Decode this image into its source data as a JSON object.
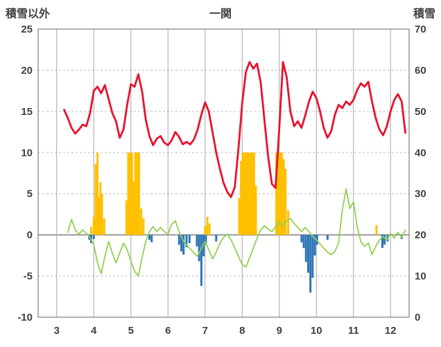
{
  "chart_data": {
    "type": "combo",
    "title": "一関",
    "left_axis": {
      "title": "積雪以外",
      "min": -10,
      "max": 25,
      "ticks": [
        25,
        20,
        15,
        10,
        5,
        0,
        -5,
        -10
      ]
    },
    "right_axis": {
      "title": "積雪",
      "min": 0,
      "max": 70,
      "ticks": [
        70,
        60,
        50,
        40,
        30,
        20,
        10,
        0
      ]
    },
    "x_axis": {
      "min": 2.5,
      "max": 12.5,
      "ticks": [
        3,
        4,
        5,
        6,
        7,
        8,
        9,
        10,
        11,
        12
      ]
    },
    "grid": {
      "vertical": "solid",
      "horizontal": "dashed",
      "zero_line": "solid"
    },
    "colors": {
      "red_line": "#e8112d",
      "green_line": "#92d050",
      "orange_bar": "#ffc000",
      "blue_bar": "#2e75b6",
      "grid": "#a6a6a6",
      "frame": "#7f7f7f",
      "text": "#404040"
    },
    "series": [
      {
        "name": "orange-bars",
        "type": "bar",
        "axis": "left",
        "color": "#ffc000",
        "points": [
          [
            3.93,
            1.0
          ],
          [
            4.0,
            2.2
          ],
          [
            4.05,
            8.6
          ],
          [
            4.1,
            10
          ],
          [
            4.14,
            4.6
          ],
          [
            4.18,
            6.4
          ],
          [
            4.22,
            5.0
          ],
          [
            4.28,
            2.0
          ],
          [
            4.88,
            4.2
          ],
          [
            4.93,
            10
          ],
          [
            4.98,
            10
          ],
          [
            5.03,
            10
          ],
          [
            5.08,
            6.5
          ],
          [
            5.12,
            10
          ],
          [
            5.17,
            10
          ],
          [
            5.22,
            10
          ],
          [
            5.28,
            3.2
          ],
          [
            5.34,
            2.0
          ],
          [
            7.0,
            1.1
          ],
          [
            7.06,
            2.2
          ],
          [
            7.12,
            1.4
          ],
          [
            7.92,
            4.5
          ],
          [
            7.97,
            9.0
          ],
          [
            8.02,
            10
          ],
          [
            8.07,
            10
          ],
          [
            8.12,
            10
          ],
          [
            8.17,
            10
          ],
          [
            8.22,
            10
          ],
          [
            8.27,
            10
          ],
          [
            8.32,
            10
          ],
          [
            8.37,
            6.0
          ],
          [
            8.92,
            10
          ],
          [
            8.97,
            10
          ],
          [
            9.02,
            10
          ],
          [
            9.07,
            10
          ],
          [
            9.12,
            9.2
          ],
          [
            9.17,
            8.0
          ],
          [
            9.24,
            3.0
          ],
          [
            11.62,
            1.2
          ]
        ]
      },
      {
        "name": "blue-bars",
        "type": "bar",
        "axis": "left",
        "color": "#2e75b6",
        "points": [
          [
            3.88,
            -0.6
          ],
          [
            3.93,
            -1.0
          ],
          [
            4.0,
            -0.5
          ],
          [
            5.5,
            -0.6
          ],
          [
            5.56,
            -0.9
          ],
          [
            6.3,
            -1.2
          ],
          [
            6.36,
            -2.0
          ],
          [
            6.42,
            -2.4
          ],
          [
            6.5,
            -1.5
          ],
          [
            6.58,
            -1.0
          ],
          [
            6.78,
            -1.4
          ],
          [
            6.84,
            -3.2
          ],
          [
            6.9,
            -6.2
          ],
          [
            6.96,
            -2.6
          ],
          [
            7.02,
            -1.2
          ],
          [
            7.3,
            -0.8
          ],
          [
            9.6,
            -0.9
          ],
          [
            9.66,
            -1.6
          ],
          [
            9.72,
            -3.3
          ],
          [
            9.78,
            -4.6
          ],
          [
            9.84,
            -7.0
          ],
          [
            9.9,
            -5.2
          ],
          [
            9.96,
            -2.5
          ],
          [
            10.02,
            -1.2
          ],
          [
            10.3,
            -0.6
          ],
          [
            11.78,
            -1.6
          ],
          [
            11.84,
            -1.2
          ],
          [
            11.92,
            -0.8
          ],
          [
            12.3,
            -0.5
          ]
        ]
      },
      {
        "name": "green-line",
        "type": "line",
        "axis": "left",
        "color": "#92d050",
        "width": 1.8,
        "points": [
          [
            3.3,
            0.3
          ],
          [
            3.4,
            1.9
          ],
          [
            3.5,
            0.6
          ],
          [
            3.6,
            0.1
          ],
          [
            3.7,
            0.6
          ],
          [
            3.8,
            0.2
          ],
          [
            3.9,
            -0.3
          ],
          [
            4.0,
            -1.2
          ],
          [
            4.1,
            -3.4
          ],
          [
            4.2,
            -4.7
          ],
          [
            4.3,
            -2.6
          ],
          [
            4.4,
            -0.8
          ],
          [
            4.5,
            -2.2
          ],
          [
            4.6,
            -3.4
          ],
          [
            4.7,
            -2.2
          ],
          [
            4.8,
            -1.0
          ],
          [
            4.9,
            -1.8
          ],
          [
            5.0,
            -3.2
          ],
          [
            5.1,
            -4.4
          ],
          [
            5.2,
            -5.0
          ],
          [
            5.3,
            -2.8
          ],
          [
            5.4,
            -0.8
          ],
          [
            5.5,
            0.4
          ],
          [
            5.6,
            1.0
          ],
          [
            5.7,
            0.4
          ],
          [
            5.8,
            0.9
          ],
          [
            5.9,
            0.4
          ],
          [
            6.0,
            0.1
          ],
          [
            6.1,
            1.3
          ],
          [
            6.2,
            1.7
          ],
          [
            6.3,
            0.4
          ],
          [
            6.4,
            -0.6
          ],
          [
            6.5,
            -1.2
          ],
          [
            6.6,
            -1.7
          ],
          [
            6.7,
            -2.2
          ],
          [
            6.8,
            -2.6
          ],
          [
            6.9,
            -1.6
          ],
          [
            7.0,
            -0.8
          ],
          [
            7.1,
            -1.8
          ],
          [
            7.2,
            -2.9
          ],
          [
            7.3,
            -2.1
          ],
          [
            7.4,
            -1.0
          ],
          [
            7.5,
            -0.3
          ],
          [
            7.6,
            0.1
          ],
          [
            7.7,
            -0.6
          ],
          [
            7.8,
            -1.6
          ],
          [
            7.9,
            -2.6
          ],
          [
            8.0,
            -3.6
          ],
          [
            8.1,
            -3.9
          ],
          [
            8.2,
            -2.8
          ],
          [
            8.3,
            -1.6
          ],
          [
            8.4,
            -0.4
          ],
          [
            8.5,
            0.6
          ],
          [
            8.6,
            1.1
          ],
          [
            8.7,
            0.7
          ],
          [
            8.8,
            0.4
          ],
          [
            8.9,
            1.0
          ],
          [
            9.0,
            1.6
          ],
          [
            9.1,
            1.1
          ],
          [
            9.2,
            1.7
          ],
          [
            9.3,
            2.0
          ],
          [
            9.4,
            1.4
          ],
          [
            9.5,
            0.9
          ],
          [
            9.6,
            0.4
          ],
          [
            9.7,
            0.9
          ],
          [
            9.8,
            0.4
          ],
          [
            9.9,
            -0.2
          ],
          [
            10.0,
            -0.6
          ],
          [
            10.1,
            -1.1
          ],
          [
            10.2,
            -1.6
          ],
          [
            10.3,
            -2.1
          ],
          [
            10.4,
            -2.4
          ],
          [
            10.5,
            -2.0
          ],
          [
            10.6,
            -1.0
          ],
          [
            10.7,
            3.0
          ],
          [
            10.8,
            5.6
          ],
          [
            10.9,
            3.2
          ],
          [
            11.0,
            4.0
          ],
          [
            11.1,
            1.0
          ],
          [
            11.2,
            -0.8
          ],
          [
            11.3,
            -1.4
          ],
          [
            11.4,
            -1.0
          ],
          [
            11.5,
            -2.4
          ],
          [
            11.6,
            -1.4
          ],
          [
            11.7,
            -0.6
          ],
          [
            11.8,
            -0.2
          ],
          [
            11.9,
            -0.6
          ],
          [
            12.0,
            0.2
          ],
          [
            12.1,
            -0.4
          ],
          [
            12.2,
            0.3
          ],
          [
            12.3,
            -0.3
          ],
          [
            12.4,
            0.6
          ]
        ]
      },
      {
        "name": "red-line",
        "type": "line",
        "axis": "left",
        "color": "#e8112d",
        "width": 2.8,
        "points": [
          [
            3.2,
            15.2
          ],
          [
            3.3,
            14.2
          ],
          [
            3.4,
            13.0
          ],
          [
            3.5,
            12.3
          ],
          [
            3.6,
            12.8
          ],
          [
            3.7,
            13.4
          ],
          [
            3.8,
            13.2
          ],
          [
            3.9,
            14.8
          ],
          [
            4.0,
            17.5
          ],
          [
            4.1,
            18.0
          ],
          [
            4.2,
            17.2
          ],
          [
            4.3,
            18.2
          ],
          [
            4.4,
            16.5
          ],
          [
            4.5,
            14.8
          ],
          [
            4.6,
            13.8
          ],
          [
            4.7,
            11.8
          ],
          [
            4.8,
            12.8
          ],
          [
            4.9,
            15.8
          ],
          [
            5.0,
            18.3
          ],
          [
            5.1,
            18.0
          ],
          [
            5.2,
            19.5
          ],
          [
            5.3,
            17.5
          ],
          [
            5.4,
            14.0
          ],
          [
            5.5,
            12.0
          ],
          [
            5.6,
            10.9
          ],
          [
            5.7,
            11.7
          ],
          [
            5.8,
            12.0
          ],
          [
            5.9,
            11.2
          ],
          [
            6.0,
            10.9
          ],
          [
            6.1,
            11.5
          ],
          [
            6.2,
            12.5
          ],
          [
            6.3,
            11.9
          ],
          [
            6.4,
            11.0
          ],
          [
            6.5,
            11.3
          ],
          [
            6.6,
            11.0
          ],
          [
            6.7,
            11.6
          ],
          [
            6.8,
            12.8
          ],
          [
            6.9,
            14.6
          ],
          [
            7.0,
            16.1
          ],
          [
            7.1,
            15.0
          ],
          [
            7.2,
            12.5
          ],
          [
            7.3,
            10.0
          ],
          [
            7.4,
            8.0
          ],
          [
            7.5,
            6.3
          ],
          [
            7.6,
            5.2
          ],
          [
            7.7,
            4.6
          ],
          [
            7.8,
            5.8
          ],
          [
            7.9,
            10.5
          ],
          [
            8.0,
            16.0
          ],
          [
            8.1,
            19.8
          ],
          [
            8.2,
            21.0
          ],
          [
            8.3,
            20.2
          ],
          [
            8.4,
            20.8
          ],
          [
            8.5,
            18.5
          ],
          [
            8.6,
            14.0
          ],
          [
            8.7,
            9.5
          ],
          [
            8.8,
            6.2
          ],
          [
            8.9,
            5.7
          ],
          [
            9.0,
            13.0
          ],
          [
            9.1,
            21.0
          ],
          [
            9.2,
            19.2
          ],
          [
            9.3,
            15.0
          ],
          [
            9.4,
            13.2
          ],
          [
            9.5,
            13.8
          ],
          [
            9.6,
            13.0
          ],
          [
            9.7,
            14.5
          ],
          [
            9.8,
            16.2
          ],
          [
            9.9,
            17.4
          ],
          [
            10.0,
            16.6
          ],
          [
            10.1,
            15.0
          ],
          [
            10.2,
            13.0
          ],
          [
            10.3,
            11.8
          ],
          [
            10.4,
            12.6
          ],
          [
            10.5,
            14.6
          ],
          [
            10.6,
            15.8
          ],
          [
            10.7,
            15.4
          ],
          [
            10.8,
            16.2
          ],
          [
            10.9,
            15.8
          ],
          [
            11.0,
            16.4
          ],
          [
            11.1,
            17.6
          ],
          [
            11.2,
            18.4
          ],
          [
            11.3,
            18.0
          ],
          [
            11.4,
            18.6
          ],
          [
            11.5,
            16.2
          ],
          [
            11.6,
            14.2
          ],
          [
            11.7,
            12.8
          ],
          [
            11.8,
            12.1
          ],
          [
            11.9,
            13.2
          ],
          [
            12.0,
            15.0
          ],
          [
            12.1,
            16.4
          ],
          [
            12.2,
            17.1
          ],
          [
            12.3,
            16.2
          ],
          [
            12.4,
            12.4
          ]
        ]
      }
    ]
  }
}
